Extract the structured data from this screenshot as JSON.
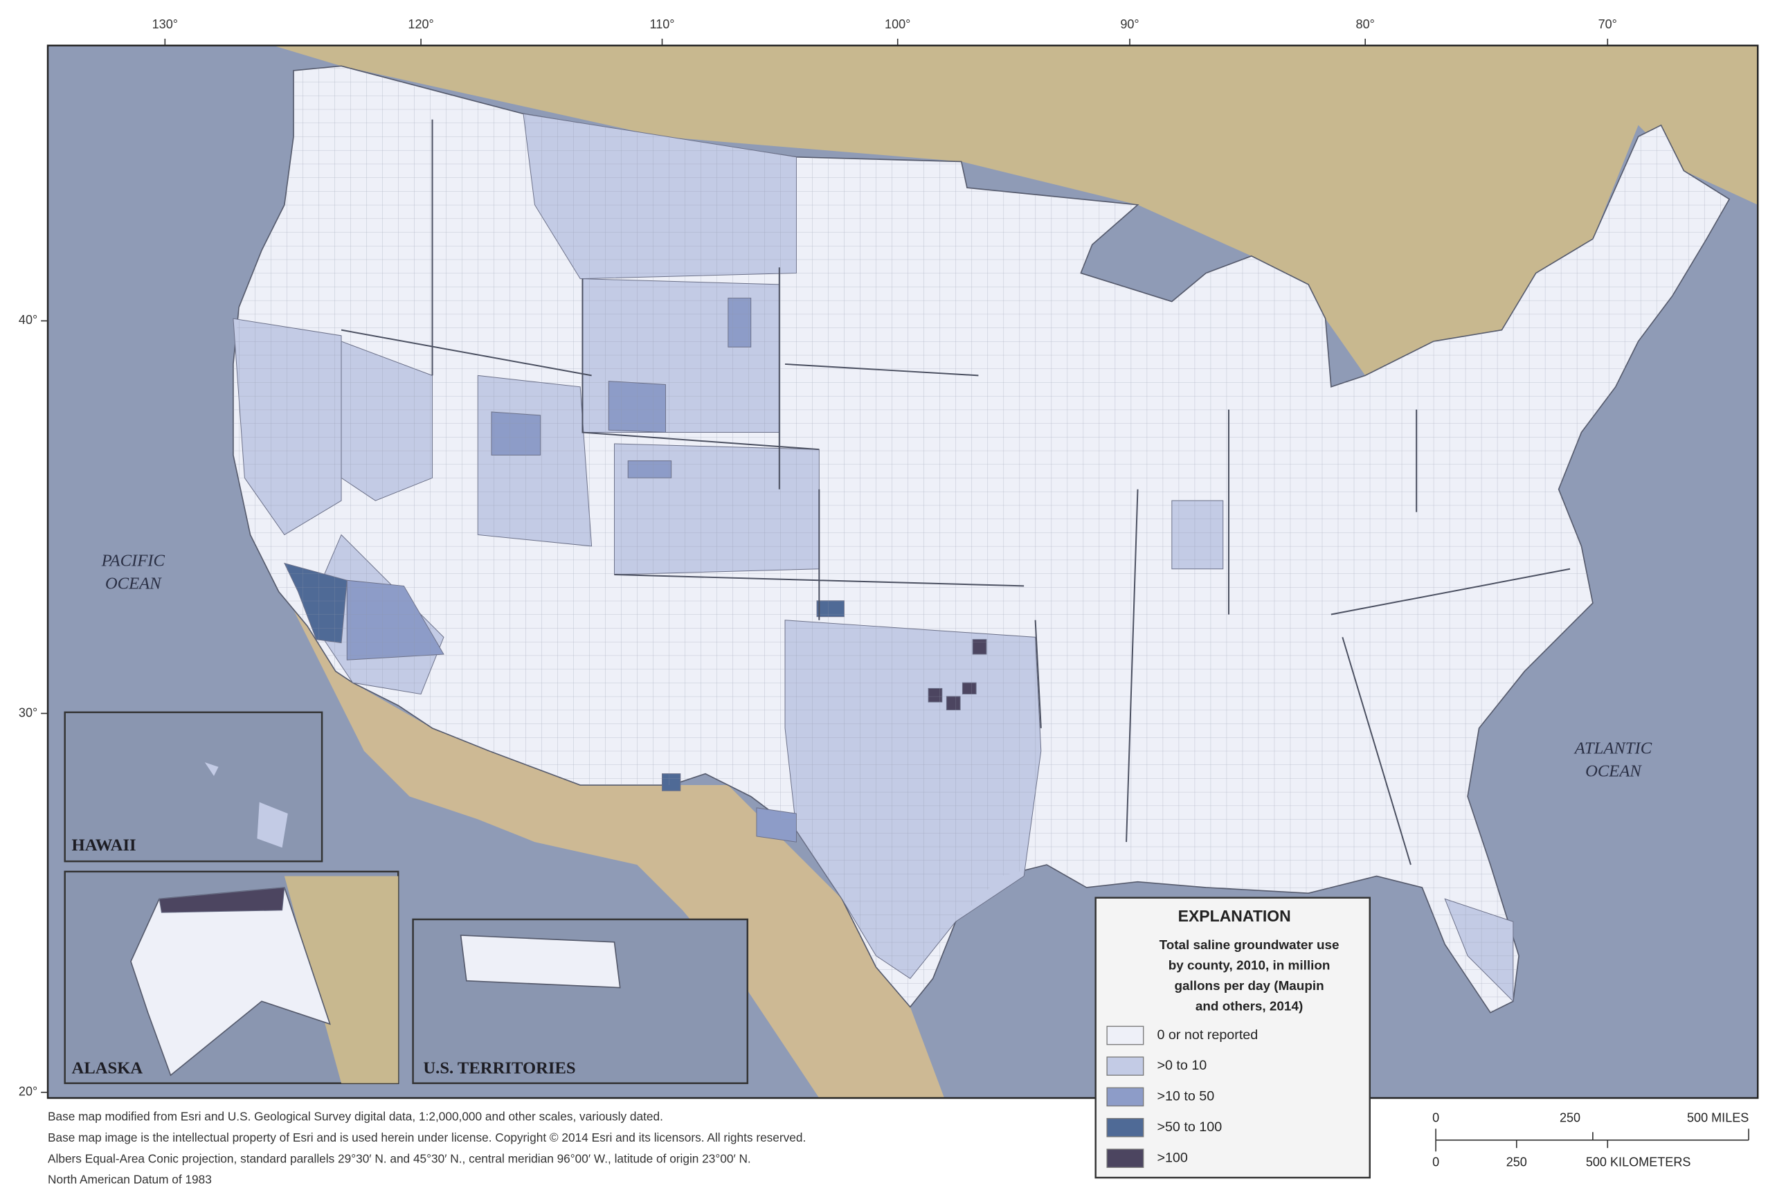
{
  "map": {
    "longitude_labels": [
      "130°",
      "120°",
      "110°",
      "100°",
      "90°",
      "80°",
      "70°"
    ],
    "latitude_labels": [
      "40°",
      "30°",
      "20°"
    ],
    "ocean_labels": {
      "pacific": [
        "PACIFIC",
        "OCEAN"
      ],
      "atlantic": [
        "ATLANTIC",
        "OCEAN"
      ]
    },
    "insets": {
      "hawaii": "HAWAII",
      "alaska": "ALASKA",
      "territories": "U.S. TERRITORIES"
    }
  },
  "legend": {
    "title": "EXPLANATION",
    "subtitle_lines": [
      "Total saline groundwater use",
      "by county, 2010, in million",
      "gallons per day (Maupin",
      "and others, 2014)"
    ],
    "items": [
      {
        "label": "0 or not reported",
        "color": "#eef0f8"
      },
      {
        "label": ">0 to 10",
        "color": "#c3cbe5"
      },
      {
        "label": ">10 to 50",
        "color": "#8d9cc8"
      },
      {
        "label": ">50 to 100",
        "color": "#4f6a96"
      },
      {
        "label": ">100",
        "color": "#4c4560"
      }
    ]
  },
  "scale_bar": {
    "miles_labels": [
      "0",
      "250",
      "500 MILES"
    ],
    "kilometer_labels": [
      "0",
      "250",
      "500 KILOMETERS"
    ]
  },
  "credits": [
    "Base map modified from Esri and U.S. Geological Survey digital data, 1:2,000,000 and other scales, variously dated.",
    "Base map image is the intellectual property of Esri and is used herein under license. Copyright © 2014 Esri and its licensors. All rights reserved.",
    "Albers Equal-Area Conic projection, standard parallels 29°30′ N. and 45°30′ N., central meridian 96°00′ W., latitude of origin 23°00′ N.",
    "North American Datum of 1983"
  ]
}
